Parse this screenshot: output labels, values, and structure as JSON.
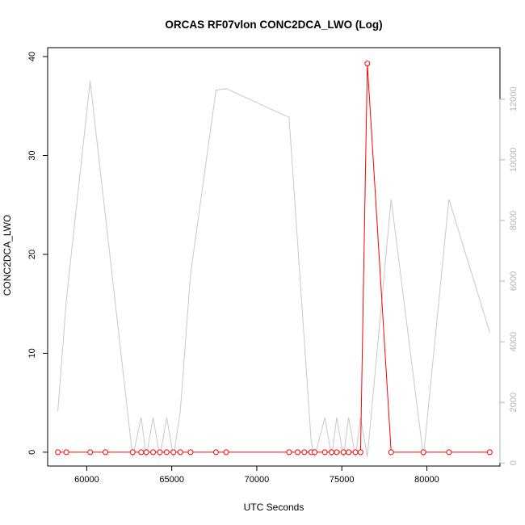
{
  "chart_data": {
    "type": "line",
    "title": "ORCAS RF07vlon CONC2DCA_LWO (Log)",
    "xlabel": "UTC Seconds",
    "ylabel": "CONC2DCA_LWO",
    "xlim": [
      57700,
      84300
    ],
    "ylim": [
      -1.4,
      40.9
    ],
    "y2lim": [
      -100,
      13700
    ],
    "x_ticks": [
      60000,
      65000,
      70000,
      75000,
      80000
    ],
    "y_ticks": [
      0,
      10,
      20,
      30,
      40
    ],
    "y2_ticks": [
      0,
      2000,
      4000,
      6000,
      8000,
      10000,
      12000
    ],
    "grid": false,
    "series": [
      {
        "color": "#ff0000",
        "axis": "left",
        "marker": "open-circle",
        "points": [
          {
            "x": 58300,
            "y": 0
          },
          {
            "x": 58800,
            "y": 0
          },
          {
            "x": 60200,
            "y": 0
          },
          {
            "x": 61100,
            "y": 0
          },
          {
            "x": 62700,
            "y": 0
          },
          {
            "x": 63200,
            "y": 0
          },
          {
            "x": 63500,
            "y": 0
          },
          {
            "x": 63900,
            "y": 0
          },
          {
            "x": 64300,
            "y": 0
          },
          {
            "x": 64700,
            "y": 0
          },
          {
            "x": 65100,
            "y": 0
          },
          {
            "x": 65500,
            "y": 0
          },
          {
            "x": 66100,
            "y": 0
          },
          {
            "x": 67600,
            "y": 0
          },
          {
            "x": 68200,
            "y": 0
          },
          {
            "x": 71900,
            "y": 0
          },
          {
            "x": 72400,
            "y": 0
          },
          {
            "x": 72800,
            "y": 0
          },
          {
            "x": 73200,
            "y": 0
          },
          {
            "x": 73400,
            "y": 0
          },
          {
            "x": 74000,
            "y": 0
          },
          {
            "x": 74400,
            "y": 0
          },
          {
            "x": 74700,
            "y": 0
          },
          {
            "x": 75100,
            "y": 0
          },
          {
            "x": 75400,
            "y": 0
          },
          {
            "x": 75800,
            "y": 0
          },
          {
            "x": 76100,
            "y": 0
          },
          {
            "x": 76500,
            "y": 39.3
          },
          {
            "x": 77900,
            "y": 0
          },
          {
            "x": 79800,
            "y": 0
          },
          {
            "x": 81300,
            "y": 0
          },
          {
            "x": 83700,
            "y": 0
          }
        ]
      },
      {
        "color": "#c8c8c8",
        "axis": "right",
        "marker": "none",
        "points": [
          {
            "x": 58300,
            "y": 1700
          },
          {
            "x": 58800,
            "y": 5400
          },
          {
            "x": 60200,
            "y": 12600
          },
          {
            "x": 62700,
            "y": 200
          },
          {
            "x": 63200,
            "y": 1500
          },
          {
            "x": 63500,
            "y": 200
          },
          {
            "x": 63900,
            "y": 1500
          },
          {
            "x": 64300,
            "y": 200
          },
          {
            "x": 64700,
            "y": 1500
          },
          {
            "x": 65100,
            "y": 200
          },
          {
            "x": 65500,
            "y": 1700
          },
          {
            "x": 66100,
            "y": 6200
          },
          {
            "x": 67600,
            "y": 12300
          },
          {
            "x": 68200,
            "y": 12350
          },
          {
            "x": 71900,
            "y": 11400
          },
          {
            "x": 73200,
            "y": 700
          },
          {
            "x": 73400,
            "y": 200
          },
          {
            "x": 74000,
            "y": 1500
          },
          {
            "x": 74400,
            "y": 200
          },
          {
            "x": 74700,
            "y": 1500
          },
          {
            "x": 75100,
            "y": 200
          },
          {
            "x": 75400,
            "y": 1500
          },
          {
            "x": 75800,
            "y": 200
          },
          {
            "x": 76100,
            "y": 1500
          },
          {
            "x": 76500,
            "y": 200
          },
          {
            "x": 77900,
            "y": 8700
          },
          {
            "x": 79800,
            "y": 200
          },
          {
            "x": 81300,
            "y": 8700
          },
          {
            "x": 83700,
            "y": 4300
          }
        ]
      }
    ]
  }
}
